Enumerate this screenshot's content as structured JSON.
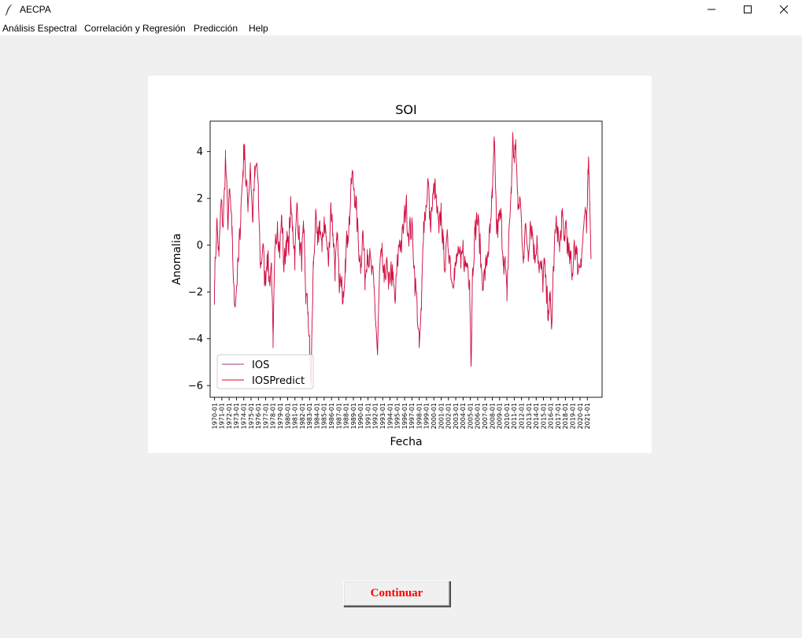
{
  "window": {
    "title": "AECPA"
  },
  "menu": {
    "items": [
      {
        "label": "Análisis Espectral"
      },
      {
        "label": "Correlación y Regresión"
      },
      {
        "label": "Predicción"
      },
      {
        "label": "Help"
      }
    ]
  },
  "continue_button": {
    "label": "Continuar"
  },
  "chart_data": {
    "type": "line",
    "title": "SOI",
    "xlabel": "Fecha",
    "ylabel": "Anomalia",
    "ylim": [
      -6.5,
      5.3
    ],
    "yticks": [
      -6,
      -4,
      -2,
      0,
      2,
      4
    ],
    "xticks": [
      "1970-01",
      "1971-01",
      "1972-01",
      "1973-01",
      "1974-01",
      "1975-01",
      "1976-01",
      "1977-01",
      "1978-01",
      "1979-01",
      "1980-01",
      "1981-01",
      "1982-01",
      "1983-01",
      "1984-01",
      "1985-01",
      "1986-01",
      "1987-01",
      "1988-01",
      "1989-01",
      "1990-01",
      "1991-01",
      "1992-01",
      "1993-01",
      "1994-01",
      "1995-01",
      "1996-01",
      "1997-01",
      "1998-01",
      "1999-01",
      "2000-01",
      "2001-01",
      "2002-01",
      "2003-01",
      "2004-01",
      "2005-01",
      "2006-01",
      "2007-01",
      "2008-01",
      "2009-01",
      "2010-01",
      "2011-01",
      "2012-01",
      "2013-01",
      "2014-01",
      "2015-01",
      "2016-01",
      "2017-01",
      "2018-01",
      "2019-01",
      "2020-01",
      "2021-01"
    ],
    "legend": {
      "placement": "lower-left",
      "entries": [
        "IOS",
        "IOSPredict"
      ]
    },
    "series": [
      {
        "name": "IOS",
        "color": "#a23a7a"
      },
      {
        "name": "IOSPredict",
        "color": "#e8002a"
      }
    ],
    "x_start": "1970-01",
    "x_end": "2021-06",
    "anchors": [
      [
        1970.0,
        -1.9
      ],
      [
        1970.3,
        1.0
      ],
      [
        1970.6,
        -0.5
      ],
      [
        1970.9,
        1.8
      ],
      [
        1971.2,
        0.8
      ],
      [
        1971.5,
        3.8
      ],
      [
        1971.8,
        1.0
      ],
      [
        1972.1,
        2.2
      ],
      [
        1972.4,
        0.4
      ],
      [
        1972.7,
        -2.5
      ],
      [
        1973.0,
        -1.8
      ],
      [
        1973.3,
        -0.6
      ],
      [
        1973.6,
        1.5
      ],
      [
        1973.9,
        3.2
      ],
      [
        1974.1,
        4.3
      ],
      [
        1974.3,
        2.5
      ],
      [
        1974.6,
        1.8
      ],
      [
        1974.9,
        3.5
      ],
      [
        1975.2,
        1.0
      ],
      [
        1975.5,
        2.9
      ],
      [
        1975.8,
        3.5
      ],
      [
        1976.0,
        2.0
      ],
      [
        1976.3,
        -1.0
      ],
      [
        1976.6,
        0.0
      ],
      [
        1976.9,
        -1.6
      ],
      [
        1977.2,
        -0.4
      ],
      [
        1977.5,
        -1.5
      ],
      [
        1977.8,
        -0.8
      ],
      [
        1978.0,
        -4.4
      ],
      [
        1978.3,
        0.0
      ],
      [
        1978.6,
        1.0
      ],
      [
        1978.9,
        -0.3
      ],
      [
        1979.2,
        1.2
      ],
      [
        1979.5,
        -1.0
      ],
      [
        1979.8,
        0.2
      ],
      [
        1980.1,
        -0.2
      ],
      [
        1980.4,
        1.5
      ],
      [
        1980.7,
        0.8
      ],
      [
        1981.0,
        -0.5
      ],
      [
        1981.3,
        1.8
      ],
      [
        1981.6,
        0.2
      ],
      [
        1981.9,
        -0.6
      ],
      [
        1982.2,
        0.5
      ],
      [
        1982.5,
        -2.2
      ],
      [
        1982.8,
        -2.9
      ],
      [
        1983.0,
        -4.4
      ],
      [
        1983.2,
        -6.0
      ],
      [
        1983.5,
        -1.0
      ],
      [
        1983.8,
        1.0
      ],
      [
        1984.1,
        0.0
      ],
      [
        1984.4,
        1.0
      ],
      [
        1984.7,
        -0.3
      ],
      [
        1985.0,
        1.2
      ],
      [
        1985.3,
        0.2
      ],
      [
        1985.6,
        -0.8
      ],
      [
        1985.9,
        1.8
      ],
      [
        1986.2,
        0.5
      ],
      [
        1986.5,
        -1.0
      ],
      [
        1986.8,
        0.2
      ],
      [
        1987.0,
        -1.3
      ],
      [
        1987.3,
        -1.8
      ],
      [
        1987.6,
        -2.0
      ],
      [
        1987.9,
        -0.6
      ],
      [
        1988.2,
        0.4
      ],
      [
        1988.5,
        1.2
      ],
      [
        1988.8,
        3.0
      ],
      [
        1989.1,
        2.4
      ],
      [
        1989.4,
        1.5
      ],
      [
        1989.7,
        0.0
      ],
      [
        1990.0,
        -0.8
      ],
      [
        1990.3,
        0.6
      ],
      [
        1990.6,
        -1.5
      ],
      [
        1990.9,
        -0.2
      ],
      [
        1991.2,
        -0.6
      ],
      [
        1991.5,
        -1.2
      ],
      [
        1991.8,
        -1.8
      ],
      [
        1992.1,
        -3.5
      ],
      [
        1992.3,
        -4.7
      ],
      [
        1992.6,
        -1.0
      ],
      [
        1992.9,
        -0.5
      ],
      [
        1993.2,
        -1.6
      ],
      [
        1993.5,
        -0.7
      ],
      [
        1993.8,
        -1.9
      ],
      [
        1994.1,
        -1.0
      ],
      [
        1994.4,
        -1.5
      ],
      [
        1994.7,
        -2.5
      ],
      [
        1995.0,
        -0.9
      ],
      [
        1995.3,
        0.2
      ],
      [
        1995.6,
        0.0
      ],
      [
        1995.9,
        0.9
      ],
      [
        1996.2,
        1.8
      ],
      [
        1996.5,
        0.5
      ],
      [
        1996.8,
        0.7
      ],
      [
        1997.1,
        0.5
      ],
      [
        1997.4,
        -1.5
      ],
      [
        1997.7,
        -2.5
      ],
      [
        1998.0,
        -4.4
      ],
      [
        1998.3,
        -2.8
      ],
      [
        1998.6,
        1.0
      ],
      [
        1998.9,
        1.5
      ],
      [
        1999.2,
        2.8
      ],
      [
        1999.5,
        0.9
      ],
      [
        1999.8,
        1.7
      ],
      [
        2000.1,
        2.5
      ],
      [
        2000.4,
        1.5
      ],
      [
        2000.7,
        0.5
      ],
      [
        2001.0,
        1.5
      ],
      [
        2001.3,
        -0.2
      ],
      [
        2001.6,
        -0.8
      ],
      [
        2001.9,
        0.3
      ],
      [
        2002.2,
        -0.5
      ],
      [
        2002.5,
        -1.6
      ],
      [
        2002.8,
        -1.0
      ],
      [
        2003.1,
        -0.8
      ],
      [
        2003.4,
        -0.2
      ],
      [
        2003.7,
        -1.0
      ],
      [
        2004.0,
        -0.2
      ],
      [
        2004.3,
        -0.9
      ],
      [
        2004.6,
        -0.8
      ],
      [
        2004.9,
        -1.5
      ],
      [
        2005.1,
        -5.2
      ],
      [
        2005.3,
        -1.0
      ],
      [
        2005.6,
        0.4
      ],
      [
        2005.9,
        1.2
      ],
      [
        2006.2,
        0.5
      ],
      [
        2006.5,
        -1.0
      ],
      [
        2006.8,
        -1.6
      ],
      [
        2007.1,
        -1.0
      ],
      [
        2007.4,
        -0.3
      ],
      [
        2007.7,
        0.5
      ],
      [
        2008.0,
        2.0
      ],
      [
        2008.3,
        4.4
      ],
      [
        2008.6,
        0.5
      ],
      [
        2008.9,
        1.0
      ],
      [
        2009.2,
        1.2
      ],
      [
        2009.5,
        -0.5
      ],
      [
        2009.8,
        -1.0
      ],
      [
        2010.0,
        -2.4
      ],
      [
        2010.3,
        0.8
      ],
      [
        2010.6,
        2.2
      ],
      [
        2010.8,
        4.8
      ],
      [
        2011.0,
        3.5
      ],
      [
        2011.2,
        4.5
      ],
      [
        2011.5,
        1.5
      ],
      [
        2011.8,
        2.0
      ],
      [
        2012.0,
        0.8
      ],
      [
        2012.3,
        -0.5
      ],
      [
        2012.6,
        0.8
      ],
      [
        2012.9,
        -0.3
      ],
      [
        2013.2,
        1.0
      ],
      [
        2013.5,
        0.5
      ],
      [
        2013.8,
        -0.6
      ],
      [
        2014.1,
        0.4
      ],
      [
        2014.4,
        -1.2
      ],
      [
        2014.7,
        -1.0
      ],
      [
        2014.9,
        -1.6
      ],
      [
        2015.1,
        -0.8
      ],
      [
        2015.4,
        -2.2
      ],
      [
        2015.7,
        -2.8
      ],
      [
        2015.9,
        -2.4
      ],
      [
        2016.1,
        -3.6
      ],
      [
        2016.3,
        -1.5
      ],
      [
        2016.6,
        0.5
      ],
      [
        2016.9,
        0.8
      ],
      [
        2017.2,
        -0.3
      ],
      [
        2017.5,
        1.2
      ],
      [
        2017.8,
        0.2
      ],
      [
        2018.1,
        1.0
      ],
      [
        2018.4,
        -0.5
      ],
      [
        2018.7,
        -0.6
      ],
      [
        2018.9,
        -1.5
      ],
      [
        2019.2,
        0.2
      ],
      [
        2019.5,
        -0.4
      ],
      [
        2019.8,
        -1.0
      ],
      [
        2020.1,
        -0.6
      ],
      [
        2020.4,
        0.3
      ],
      [
        2020.7,
        1.6
      ],
      [
        2020.9,
        0.5
      ],
      [
        2021.1,
        3.0
      ],
      [
        2021.2,
        3.2
      ],
      [
        2021.35,
        1.5
      ],
      [
        2021.5,
        -0.6
      ]
    ]
  }
}
